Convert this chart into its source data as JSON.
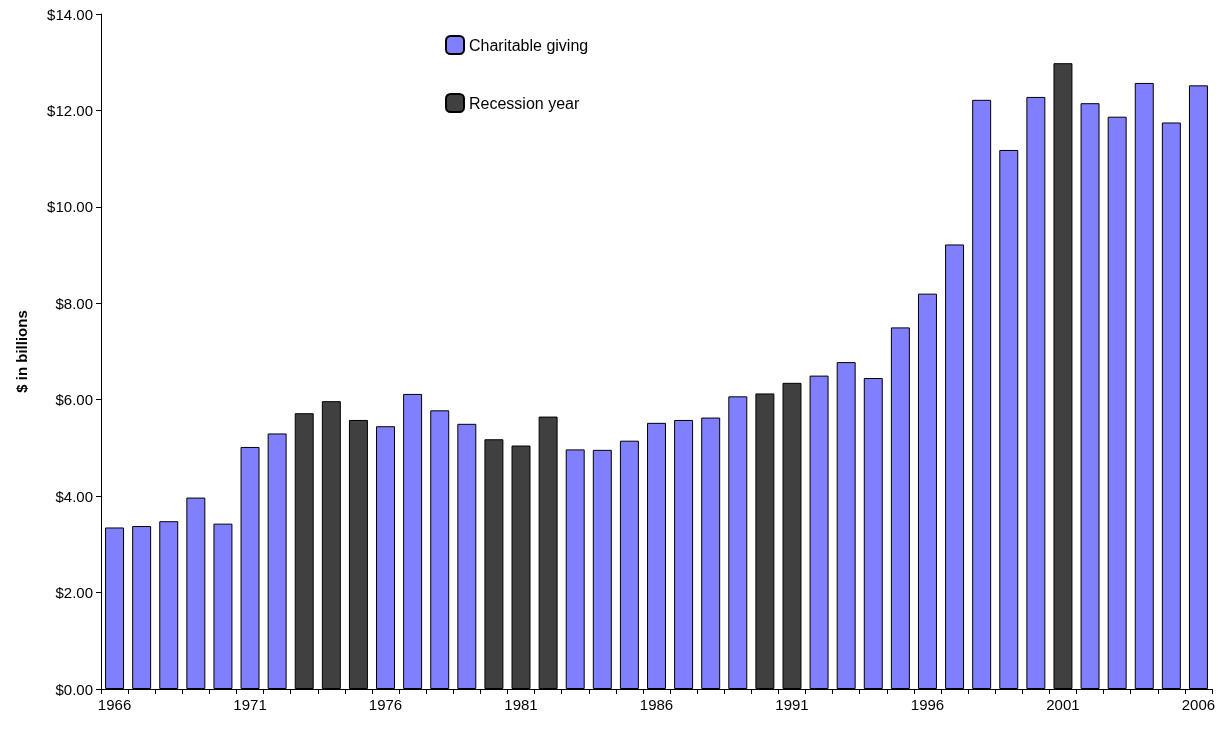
{
  "chart_data": {
    "type": "bar",
    "ylabel": "$ in billions",
    "categories": [
      "1966",
      null,
      null,
      null,
      null,
      "1971",
      null,
      null,
      null,
      null,
      "1976",
      null,
      null,
      null,
      null,
      "1981",
      null,
      null,
      null,
      null,
      "1986",
      null,
      null,
      null,
      null,
      "1991",
      null,
      null,
      null,
      null,
      "1996",
      null,
      null,
      null,
      null,
      "2001",
      null,
      null,
      null,
      null,
      "2006"
    ],
    "series": [
      {
        "name": "Charitable giving",
        "color": "#8080ff",
        "values": [
          3.35,
          3.38,
          3.48,
          3.97,
          3.43,
          5.02,
          5.3,
          null,
          null,
          null,
          5.45,
          6.12,
          5.78,
          5.5,
          null,
          null,
          null,
          4.97,
          4.96,
          5.15,
          5.52,
          5.58,
          5.63,
          6.07,
          null,
          null,
          6.5,
          6.78,
          6.45,
          7.5,
          8.2,
          9.22,
          12.22,
          11.18,
          12.28,
          null,
          12.15,
          11.87,
          12.57,
          11.75,
          12.52
        ]
      },
      {
        "name": "Recession year",
        "color": "#404040",
        "values": [
          null,
          null,
          null,
          null,
          null,
          null,
          null,
          5.72,
          5.97,
          5.58,
          null,
          null,
          null,
          null,
          5.18,
          5.05,
          5.65,
          null,
          null,
          null,
          null,
          null,
          null,
          null,
          6.13,
          6.35,
          null,
          null,
          null,
          null,
          null,
          null,
          null,
          null,
          null,
          12.98,
          null,
          null,
          null,
          null,
          null
        ]
      }
    ],
    "ylim": [
      0,
      14
    ],
    "yticks": [
      {
        "value": 0,
        "label": "$0.00"
      },
      {
        "value": 2,
        "label": "$2.00"
      },
      {
        "value": 4,
        "label": "$4.00"
      },
      {
        "value": 6,
        "label": "$6.00"
      },
      {
        "value": 8,
        "label": "$8.00"
      },
      {
        "value": 10,
        "label": "$10.00"
      },
      {
        "value": 12,
        "label": "$12.00"
      },
      {
        "value": 14,
        "label": "$14.00"
      }
    ],
    "legend": "top"
  }
}
